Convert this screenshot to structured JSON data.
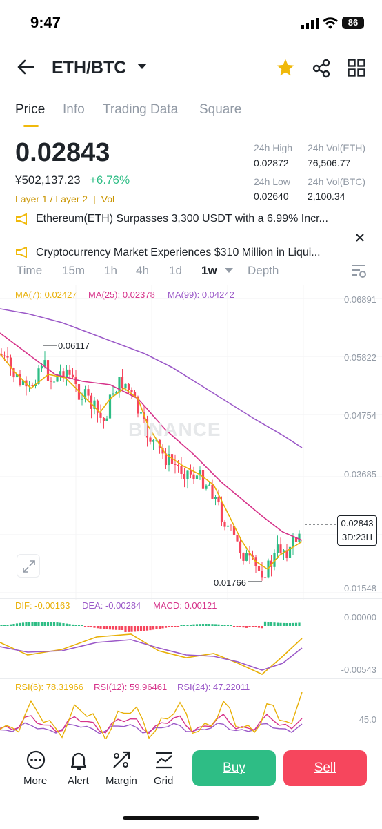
{
  "status": {
    "time": "9:47",
    "battery": "86"
  },
  "header": {
    "pair": "ETH/BTC"
  },
  "tabs": [
    {
      "label": "Price",
      "active": true
    },
    {
      "label": "Info"
    },
    {
      "label": "Trading Data"
    },
    {
      "label": "Square"
    }
  ],
  "ticker": {
    "price": "0.02843",
    "fiat": "¥502,137.23",
    "change": "+6.76%",
    "tags": "Layer 1 / Layer 2",
    "vol": "Vol",
    "high_label": "24h High",
    "high": "0.02872",
    "low_label": "24h Low",
    "low": "0.02640",
    "vol_eth_label": "24h Vol(ETH)",
    "vol_eth": "76,506.77",
    "vol_btc_label": "24h Vol(BTC)",
    "vol_btc": "2,100.34"
  },
  "news": [
    "Ethereum(ETH) Surpasses 3,300 USDT with a 6.99% Incr...",
    "Cryptocurrency Market Experiences $310 Million in Liqui..."
  ],
  "intervals": [
    "Time",
    "15m",
    "1h",
    "4h",
    "1d",
    "1w",
    "Depth"
  ],
  "active_interval": "1w",
  "ma": {
    "ma7": "MA(7): 0.02427",
    "ma25": "MA(25): 0.02378",
    "ma99": "MA(99): 0.04242"
  },
  "price_axis": [
    "0.06891",
    "0.05822",
    "0.04754",
    "0.03685",
    "0.02843",
    "0.01548"
  ],
  "labels": {
    "high_mark": "0.06117",
    "low_mark": "0.01766",
    "last_price": "0.02843",
    "countdown": "3D:23H",
    "watermark": "BINANCE"
  },
  "macd": {
    "dif": "DIF: -0.00163",
    "dea": "DEA: -0.00284",
    "macd": "MACD: 0.00121",
    "axis_top": "0.00000",
    "axis_bottom": "-0.00543"
  },
  "rsi": {
    "rsi6": "RSI(6): 78.31966",
    "rsi12": "RSI(12): 59.96461",
    "rsi24": "RSI(24): 47.22011",
    "axis": "45.0"
  },
  "bottom_nav": [
    {
      "label": "More",
      "icon": "more-icon"
    },
    {
      "label": "Alert",
      "icon": "bell-icon"
    },
    {
      "label": "Margin",
      "icon": "margin-icon"
    },
    {
      "label": "Grid",
      "icon": "grid-chart-icon"
    }
  ],
  "buttons": {
    "buy": "Buy",
    "sell": "Sell"
  },
  "colors": {
    "up": "#2ebd85",
    "down": "#f6465d",
    "accent": "#f0b90b",
    "ma7": "#e8b008",
    "ma25": "#d6338a",
    "ma99": "#9b59c8"
  }
}
